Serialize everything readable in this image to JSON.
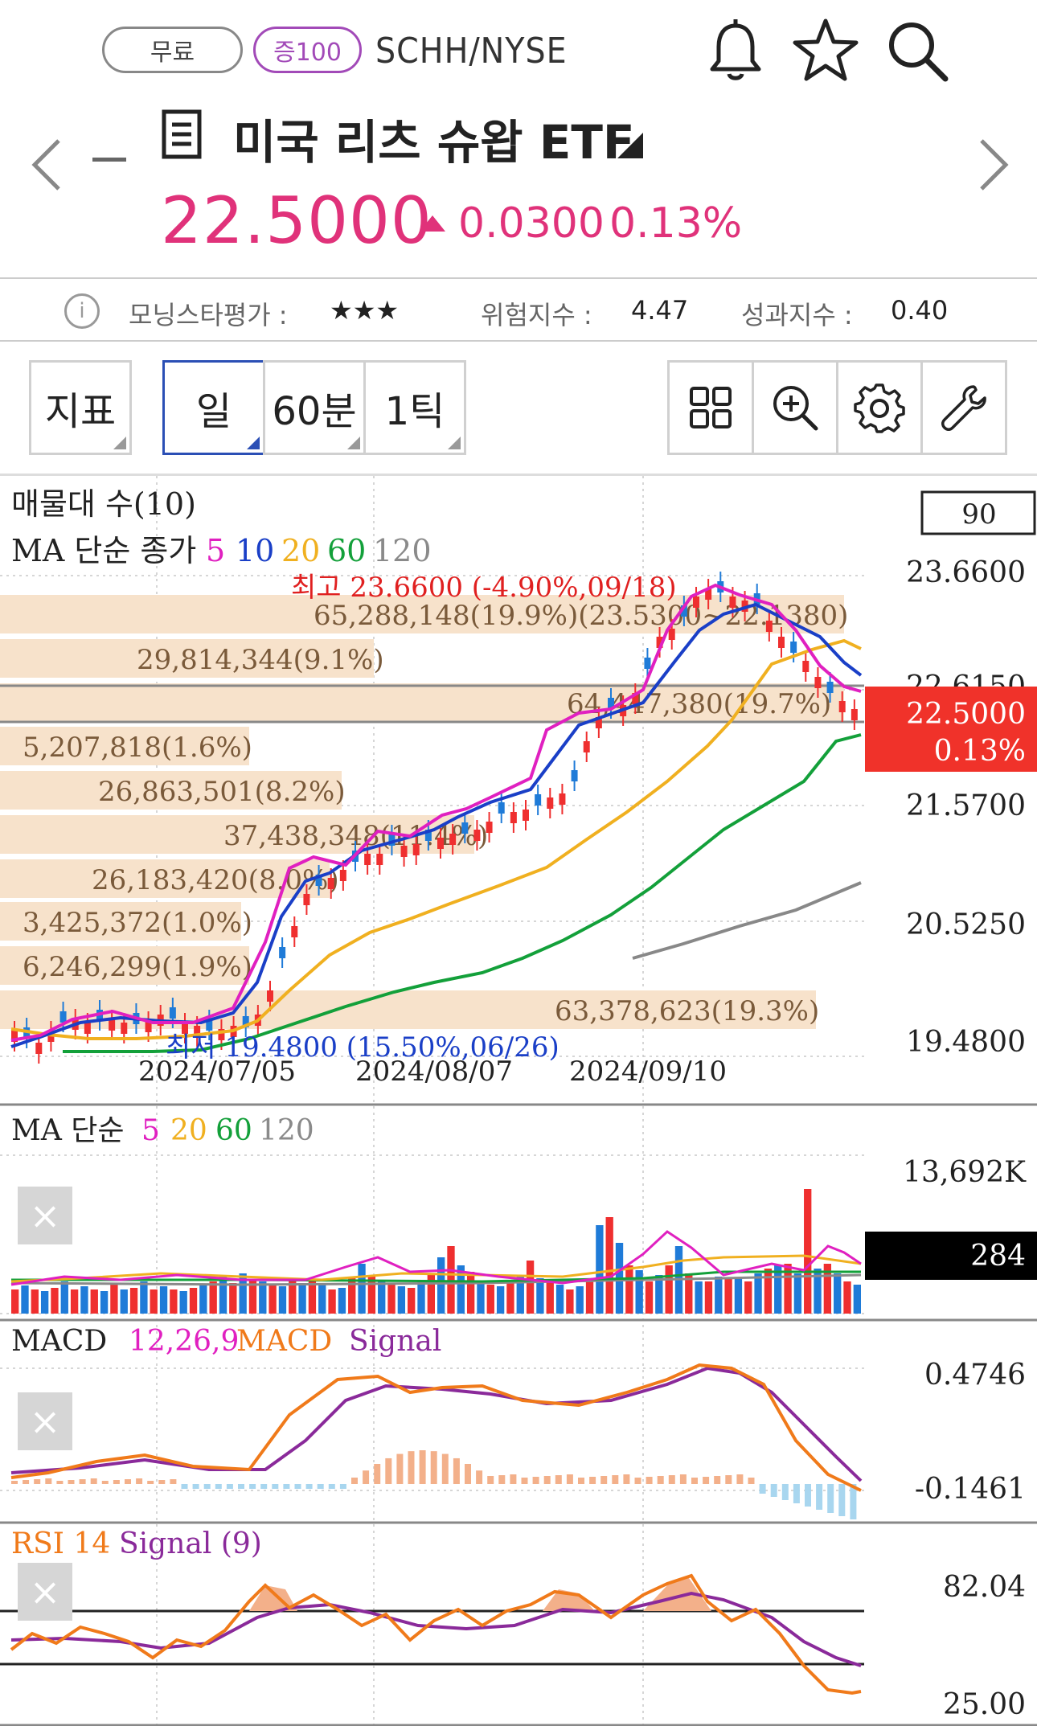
{
  "header": {
    "badge_free": "무료",
    "badge_margin": "증100",
    "symbol": "SCHH/NYSE",
    "name": "미국 리츠 슈왑 ETF",
    "price": "22.5000",
    "change": "0.0300",
    "change_pct": "0.13%",
    "icons": [
      "bell-icon",
      "star-icon",
      "search-icon",
      "chevron-left-icon",
      "chevron-right-icon",
      "document-icon"
    ],
    "price_color": "#e0327a"
  },
  "ratings": {
    "morningstar_label": "모닝스타평가 :",
    "morningstar_value": "★★★",
    "risk_label": "위험지수 :",
    "risk_value": "4.47",
    "performance_label": "성과지수 :",
    "performance_value": "0.40"
  },
  "toolbar": {
    "indicator": "지표",
    "day": "일",
    "min60": "60분",
    "tick1": "1틱",
    "icons": [
      "grid-icon",
      "zoom-in-icon",
      "settings-gear-icon",
      "wrench-icon"
    ]
  },
  "main_chart": {
    "legend_volume_profile": "매물대 수(10)",
    "legend_ma": "MA 단순 종가",
    "ma_periods": [
      "5",
      "10",
      "20",
      "60",
      "120"
    ],
    "ma_colors": [
      "#e020c0",
      "#1a3fc7",
      "#f0b020",
      "#13a03a",
      "#8a8a8a"
    ],
    "count_box": "90",
    "price_labels": [
      "23.6600",
      "22.6150",
      "21.5700",
      "20.5250",
      "19.4800"
    ],
    "current_price": "22.5000",
    "current_pct": "0.13%",
    "high_annotation": "최고 23.6600 (-4.90%,09/18)",
    "low_annotation": "최저 19.4800 (15.50%,06/26)",
    "dates": [
      "2024/07/05",
      "2024/08/07",
      "2024/09/10"
    ],
    "volume_profile": [
      "65,288,148(19.9%)(23.5300~22.1380)",
      "29,814,344(9.1%)",
      "64,447,380(19.7%)",
      "5,207,818(1.6%)",
      "26,863,501(8.2%)",
      "37,438,348(11.4%)",
      "26,183,420(8.0%)",
      "3,425,372(1.0%)",
      "6,246,299(1.9%)",
      "63,378,623(19.3%)"
    ]
  },
  "volume_chart": {
    "legend": "MA 단순",
    "periods": [
      "5",
      "20",
      "60",
      "120"
    ],
    "max_label": "13,692K",
    "current_label": "284"
  },
  "macd_chart": {
    "legend_name": "MACD",
    "params": "12,26,9",
    "macd_label": "MACD",
    "signal_label": "Signal",
    "top_label": "0.4746",
    "bottom_label": "-0.1461"
  },
  "rsi_chart": {
    "legend_name": "RSI 14",
    "signal_label": "Signal (9)",
    "top_label": "82.04",
    "bottom_label": "25.00"
  },
  "close_label": "×"
}
